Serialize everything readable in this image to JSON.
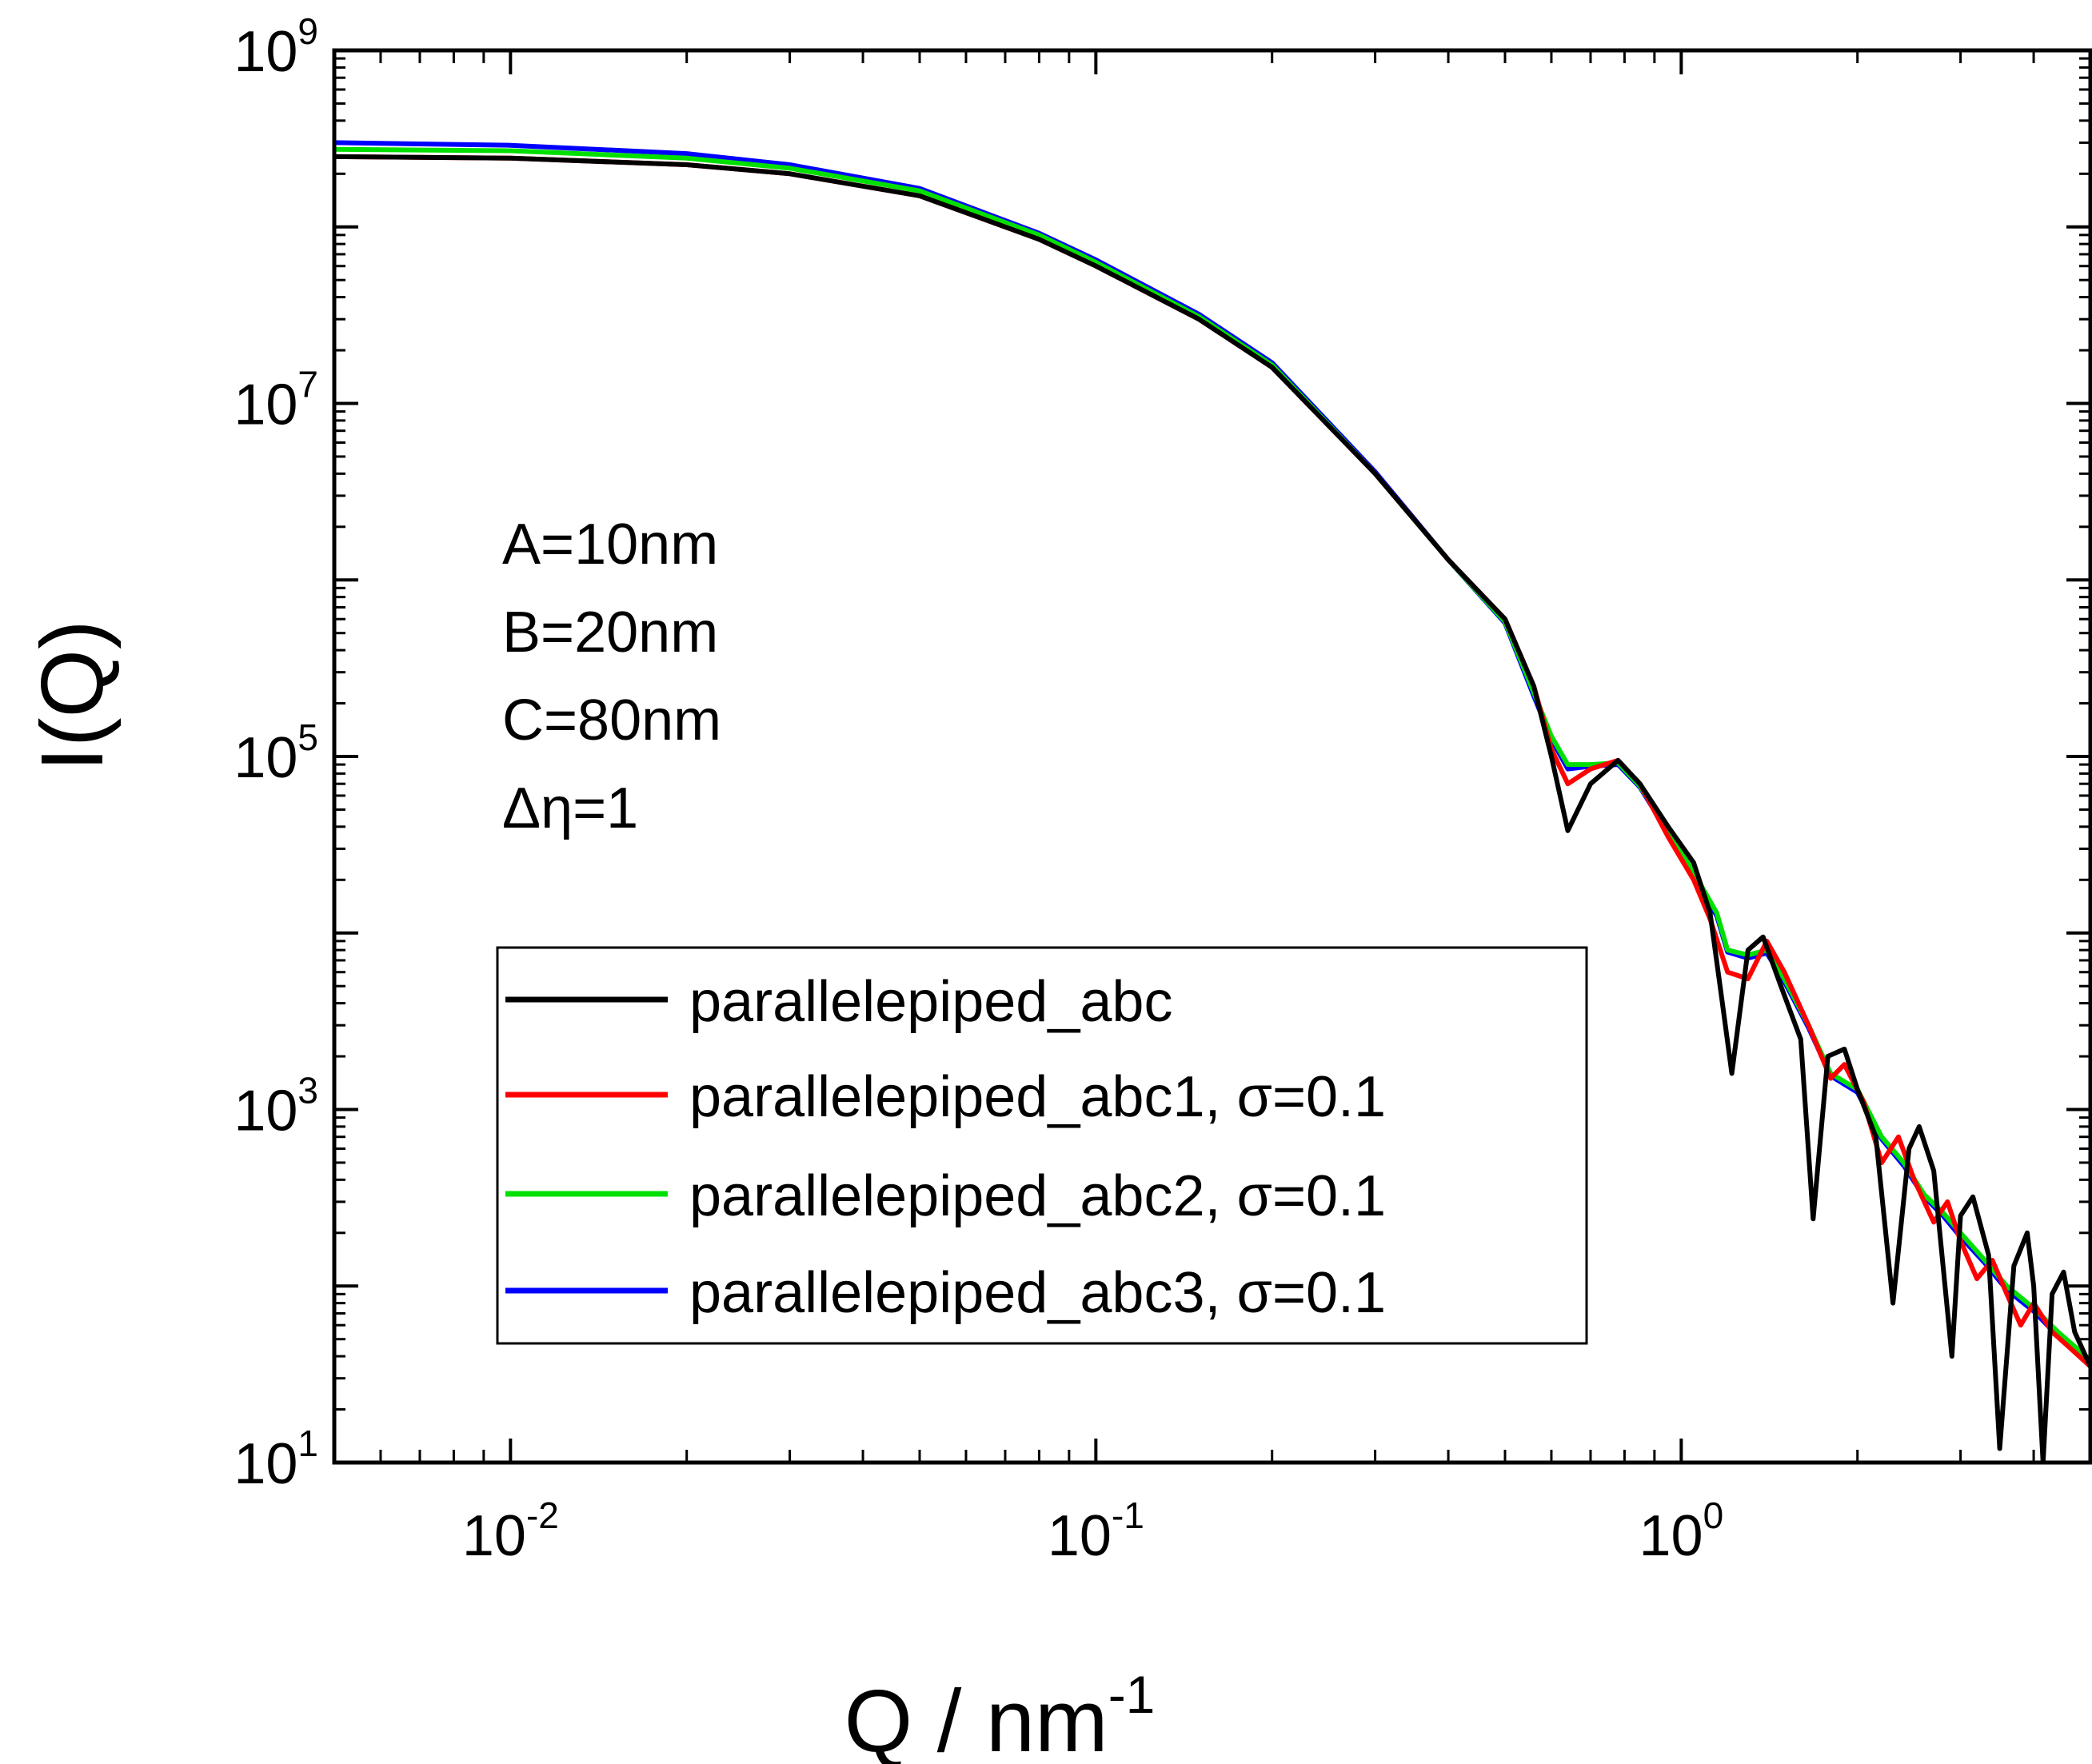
{
  "chart_data": {
    "type": "line",
    "x_scale": "log",
    "y_scale": "log",
    "xlim": [
      0.005,
      5.0
    ],
    "ylim": [
      10,
      1000000000
    ],
    "xlabel": "Q / nm",
    "xlabel_exponent": "-1",
    "ylabel": "I(Q)",
    "x_ticks": [
      {
        "base": "10",
        "exp": "-2",
        "value": 0.01
      },
      {
        "base": "10",
        "exp": "-1",
        "value": 0.1
      },
      {
        "base": "10",
        "exp": "0",
        "value": 1
      }
    ],
    "y_ticks": [
      {
        "base": "10",
        "exp": "1",
        "value": 10
      },
      {
        "base": "10",
        "exp": "3",
        "value": 1000
      },
      {
        "base": "10",
        "exp": "5",
        "value": 100000
      },
      {
        "base": "10",
        "exp": "7",
        "value": 10000000
      },
      {
        "base": "10",
        "exp": "9",
        "value": 1000000000
      }
    ],
    "annotations": [
      "A=10nm",
      "B=20nm",
      "C=80nm",
      "Δη=1"
    ],
    "legend_placement": "lower-center",
    "grid": false,
    "series": [
      {
        "name": "parallelepiped_abc",
        "color": "#000000",
        "x": [
          0.005,
          0.01,
          0.02,
          0.03,
          0.05,
          0.08,
          0.1,
          0.15,
          0.2,
          0.3,
          0.4,
          0.5,
          0.56,
          0.6,
          0.64,
          0.7,
          0.78,
          0.85,
          0.95,
          1.05,
          1.12,
          1.17,
          1.22,
          1.3,
          1.38,
          1.48,
          1.6,
          1.68,
          1.78,
          1.9,
          2.0,
          2.15,
          2.3,
          2.45,
          2.55,
          2.7,
          2.9,
          3.0,
          3.15,
          3.35,
          3.5,
          3.7,
          3.9,
          4.0,
          4.15,
          4.3,
          4.5,
          4.7,
          5.0
        ],
        "y": [
          250000000,
          245000000,
          225000000,
          200000000,
          150000000,
          85000000,
          60000000,
          30000000,
          16000000,
          4000000,
          1300000,
          600000,
          250000,
          100000,
          38000,
          70000,
          95000,
          70000,
          40000,
          25000,
          13000,
          4500,
          1600,
          8000,
          9500,
          5000,
          2500,
          240,
          2000,
          2200,
          1300,
          700,
          80,
          600,
          800,
          450,
          40,
          250,
          320,
          150,
          12,
          130,
          200,
          100,
          10,
          90,
          120,
          55,
          35
        ]
      },
      {
        "name": "parallelepiped_abc1, σ=0.1",
        "color": "#ff0000",
        "x": [
          0.005,
          0.01,
          0.02,
          0.03,
          0.05,
          0.08,
          0.1,
          0.15,
          0.2,
          0.3,
          0.4,
          0.5,
          0.56,
          0.6,
          0.64,
          0.7,
          0.78,
          0.85,
          0.95,
          1.05,
          1.12,
          1.2,
          1.3,
          1.4,
          1.5,
          1.65,
          1.8,
          1.9,
          2.05,
          2.2,
          2.35,
          2.5,
          2.7,
          2.85,
          3.0,
          3.2,
          3.4,
          3.6,
          3.8,
          4.0,
          4.3,
          4.6,
          5.0
        ],
        "y": [
          250000000,
          245000000,
          225000000,
          200000000,
          150000000,
          85000000,
          60000000,
          30000000,
          16000000,
          4000000,
          1300000,
          600000,
          250000,
          110000,
          70000,
          85000,
          95000,
          70000,
          35000,
          20000,
          12000,
          6000,
          5500,
          9000,
          6000,
          3000,
          1500,
          1800,
          1100,
          500,
          700,
          400,
          230,
          300,
          180,
          110,
          140,
          90,
          60,
          80,
          55,
          45,
          35
        ]
      },
      {
        "name": "parallelepiped_abc2, σ=0.1",
        "color": "#00e000",
        "x": [
          0.005,
          0.01,
          0.02,
          0.03,
          0.05,
          0.08,
          0.1,
          0.15,
          0.2,
          0.3,
          0.4,
          0.5,
          0.56,
          0.6,
          0.64,
          0.7,
          0.78,
          0.85,
          0.95,
          1.05,
          1.15,
          1.2,
          1.3,
          1.4,
          1.5,
          1.65,
          1.8,
          2.0,
          2.2,
          2.4,
          2.6,
          2.8,
          3.0,
          3.3,
          3.6,
          4.0,
          4.4,
          5.0
        ],
        "y": [
          275000000,
          270000000,
          245000000,
          215000000,
          160000000,
          90000000,
          63000000,
          31000000,
          16500000,
          4000000,
          1300000,
          580000,
          230000,
          130000,
          90000,
          90000,
          92000,
          68000,
          38000,
          22000,
          13000,
          8000,
          7500,
          8000,
          5500,
          3000,
          1600,
          1300,
          700,
          500,
          330,
          260,
          200,
          140,
          100,
          75,
          55,
          38
        ]
      },
      {
        "name": "parallelepiped_abc3, σ=0.1",
        "color": "#0000ff",
        "x": [
          0.005,
          0.01,
          0.02,
          0.03,
          0.05,
          0.08,
          0.1,
          0.15,
          0.2,
          0.3,
          0.4,
          0.5,
          0.56,
          0.6,
          0.64,
          0.7,
          0.78,
          0.85,
          0.95,
          1.05,
          1.15,
          1.2,
          1.3,
          1.4,
          1.5,
          1.65,
          1.8,
          2.0,
          2.2,
          2.4,
          2.6,
          2.8,
          3.0,
          3.3,
          3.6,
          4.0,
          4.4,
          5.0
        ],
        "y": [
          300000000,
          290000000,
          260000000,
          225000000,
          165000000,
          92000000,
          65000000,
          32000000,
          17000000,
          4100000,
          1300000,
          570000,
          220000,
          125000,
          85000,
          88000,
          90000,
          67000,
          37000,
          21000,
          12500,
          7800,
          7200,
          7700,
          5300,
          2900,
          1550,
          1250,
          680,
          480,
          320,
          250,
          190,
          135,
          95,
          72,
          52,
          36
        ]
      }
    ]
  }
}
